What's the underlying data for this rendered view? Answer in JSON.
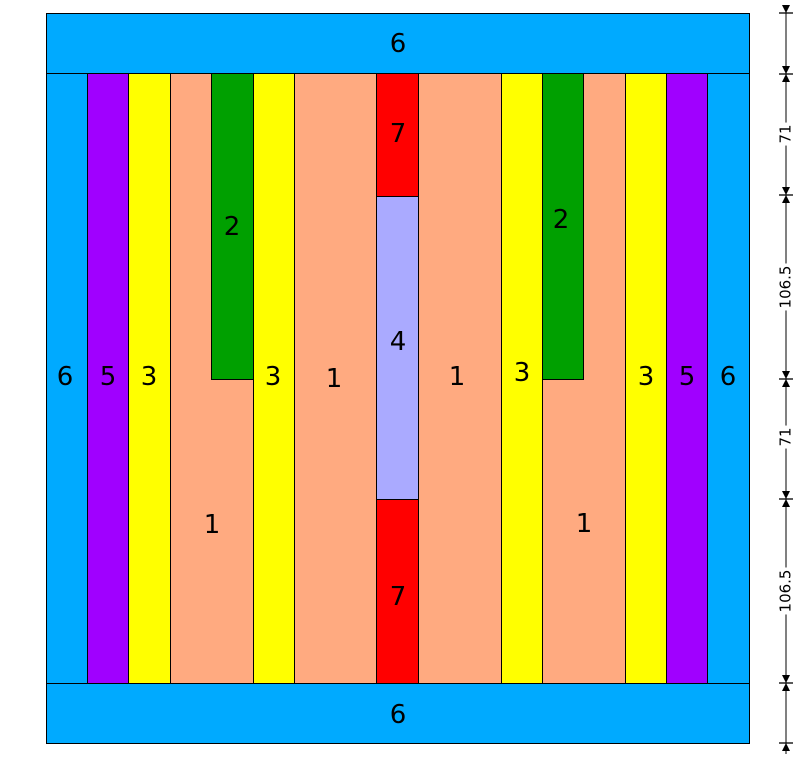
{
  "colors": {
    "region_1": "#ffaa80",
    "region_2": "#00a000",
    "region_3": "#ffff00",
    "region_4": "#aaaaff",
    "region_5": "#a000ff",
    "region_6": "#00aaff",
    "region_7": "#ff0000"
  },
  "region_labels": {
    "r1": "1",
    "r2": "2",
    "r3": "3",
    "r4": "4",
    "r5": "5",
    "r6": "6",
    "r7": "7"
  },
  "dimensions": {
    "d1": "71",
    "d2": "106.5",
    "d3": "71",
    "d4": "106.5"
  }
}
